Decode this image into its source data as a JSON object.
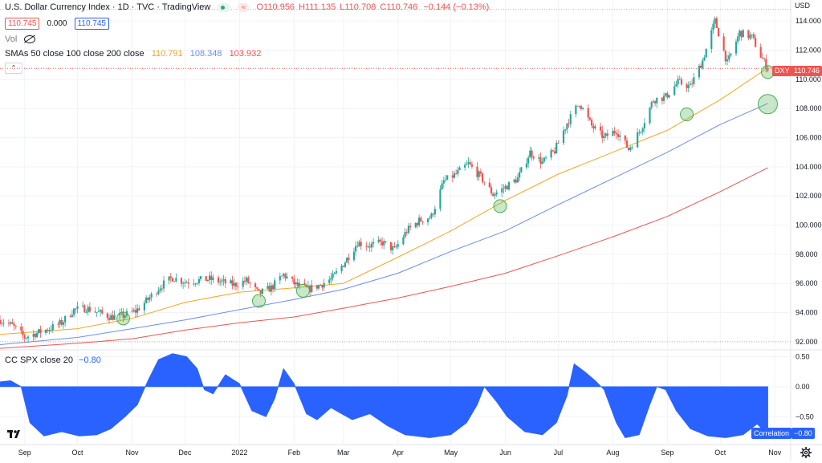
{
  "header": {
    "symbol_title": "U.S. Dollar Currency Index · 1D · TVC · TradingView",
    "ohlc": {
      "o": "O110.956",
      "h": "H111.135",
      "l": "L110.708",
      "c": "C110.746",
      "chg": "−0.144 (−0.13%)"
    },
    "price_box_left": "110.745",
    "spread": "0.000",
    "price_box_right": "110.745",
    "vol_label": "Vol",
    "sma_label": "SMAs 50 close 100 close 200 close",
    "sma50_value": "110.791",
    "sma100_value": "108.348",
    "sma200_value": "103.932"
  },
  "lower": {
    "label": "CC SPX close 20",
    "value": "−0.80",
    "badge_label": "Correlation",
    "badge_value": "−0.80"
  },
  "price_badge": {
    "symbol": "DXY",
    "value": "110.746"
  },
  "axis_unit": "USD",
  "colors": {
    "up": "#26a69a",
    "down": "#ef5350",
    "sma50": "#f5a623",
    "sma100": "#6b8ef0",
    "sma200": "#ef5350",
    "area": "#2962ff",
    "marker": "#4caf50"
  },
  "chart_data": [
    {
      "type": "candlestick",
      "title": "U.S. Dollar Currency Index · 1D · TVC · TradingView",
      "ylabel": "USD",
      "ylim": [
        91.5,
        115
      ],
      "y_ticks": [
        "114.000",
        "112.000",
        "110.000",
        "108.000",
        "106.000",
        "104.000",
        "102.000",
        "100.000",
        "98.000",
        "96.000",
        "94.000",
        "92.000"
      ],
      "x_ticks": [
        "Sep",
        "Oct",
        "Nov",
        "Dec",
        "2022",
        "Feb",
        "Mar",
        "Apr",
        "May",
        "Jun",
        "Jul",
        "Aug",
        "Sep",
        "Oct",
        "Nov"
      ],
      "x_tick_dates": [
        "2021-09-01",
        "2021-10-01",
        "2021-11-01",
        "2021-12-01",
        "2022-01-01",
        "2022-02-01",
        "2022-03-01",
        "2022-04-01",
        "2022-05-01",
        "2022-06-01",
        "2022-07-01",
        "2022-08-01",
        "2022-09-01",
        "2022-10-01",
        "2022-11-01"
      ],
      "xlim": [
        "2021-08-18",
        "2022-11-10"
      ],
      "close_path": [
        {
          "date": "2021-08-18",
          "close": 93.5
        },
        {
          "date": "2021-08-25",
          "close": 93.1
        },
        {
          "date": "2021-09-01",
          "close": 92.3
        },
        {
          "date": "2021-09-08",
          "close": 92.6
        },
        {
          "date": "2021-09-15",
          "close": 92.9
        },
        {
          "date": "2021-09-22",
          "close": 93.3
        },
        {
          "date": "2021-09-29",
          "close": 94.2
        },
        {
          "date": "2021-10-06",
          "close": 94.3
        },
        {
          "date": "2021-10-13",
          "close": 94.0
        },
        {
          "date": "2021-10-20",
          "close": 93.7
        },
        {
          "date": "2021-10-27",
          "close": 93.8
        },
        {
          "date": "2021-11-03",
          "close": 94.1
        },
        {
          "date": "2021-11-10",
          "close": 94.9
        },
        {
          "date": "2021-11-17",
          "close": 95.8
        },
        {
          "date": "2021-11-24",
          "close": 96.4
        },
        {
          "date": "2021-12-01",
          "close": 96.1
        },
        {
          "date": "2021-12-08",
          "close": 96.2
        },
        {
          "date": "2021-12-15",
          "close": 96.3
        },
        {
          "date": "2021-12-22",
          "close": 96.1
        },
        {
          "date": "2021-12-29",
          "close": 95.9
        },
        {
          "date": "2022-01-05",
          "close": 96.2
        },
        {
          "date": "2022-01-12",
          "close": 95.3
        },
        {
          "date": "2022-01-19",
          "close": 95.7
        },
        {
          "date": "2022-01-26",
          "close": 96.6
        },
        {
          "date": "2022-02-02",
          "close": 95.9
        },
        {
          "date": "2022-02-09",
          "close": 95.6
        },
        {
          "date": "2022-02-16",
          "close": 95.9
        },
        {
          "date": "2022-02-23",
          "close": 96.4
        },
        {
          "date": "2022-03-02",
          "close": 97.5
        },
        {
          "date": "2022-03-09",
          "close": 98.8
        },
        {
          "date": "2022-03-16",
          "close": 98.6
        },
        {
          "date": "2022-03-23",
          "close": 98.8
        },
        {
          "date": "2022-03-30",
          "close": 98.3
        },
        {
          "date": "2022-04-06",
          "close": 99.6
        },
        {
          "date": "2022-04-13",
          "close": 100.3
        },
        {
          "date": "2022-04-20",
          "close": 100.6
        },
        {
          "date": "2022-04-27",
          "close": 103.0
        },
        {
          "date": "2022-05-04",
          "close": 103.5
        },
        {
          "date": "2022-05-11",
          "close": 104.2
        },
        {
          "date": "2022-05-18",
          "close": 103.3
        },
        {
          "date": "2022-05-25",
          "close": 102.1
        },
        {
          "date": "2022-06-01",
          "close": 102.6
        },
        {
          "date": "2022-06-08",
          "close": 103.2
        },
        {
          "date": "2022-06-15",
          "close": 105.0
        },
        {
          "date": "2022-06-22",
          "close": 104.3
        },
        {
          "date": "2022-06-29",
          "close": 105.1
        },
        {
          "date": "2022-07-06",
          "close": 107.0
        },
        {
          "date": "2022-07-13",
          "close": 108.4
        },
        {
          "date": "2022-07-20",
          "close": 106.8
        },
        {
          "date": "2022-07-27",
          "close": 106.0
        },
        {
          "date": "2022-08-03",
          "close": 106.5
        },
        {
          "date": "2022-08-10",
          "close": 105.2
        },
        {
          "date": "2022-08-17",
          "close": 106.6
        },
        {
          "date": "2022-08-24",
          "close": 108.6
        },
        {
          "date": "2022-08-31",
          "close": 108.8
        },
        {
          "date": "2022-09-07",
          "close": 109.8
        },
        {
          "date": "2022-09-14",
          "close": 109.5
        },
        {
          "date": "2022-09-21",
          "close": 111.3
        },
        {
          "date": "2022-09-28",
          "close": 114.0
        },
        {
          "date": "2022-10-05",
          "close": 111.1
        },
        {
          "date": "2022-10-12",
          "close": 113.2
        },
        {
          "date": "2022-10-19",
          "close": 112.9
        },
        {
          "date": "2022-10-24",
          "close": 111.6
        },
        {
          "date": "2022-10-28",
          "close": 110.746
        }
      ],
      "series": [
        {
          "name": "SMA 50",
          "points": [
            {
              "date": "2021-08-18",
              "value": 92.5
            },
            {
              "date": "2021-10-01",
              "value": 92.9
            },
            {
              "date": "2021-11-01",
              "value": 93.6
            },
            {
              "date": "2021-12-01",
              "value": 94.7
            },
            {
              "date": "2022-01-01",
              "value": 95.4
            },
            {
              "date": "2022-02-01",
              "value": 95.7
            },
            {
              "date": "2022-03-01",
              "value": 96.0
            },
            {
              "date": "2022-04-01",
              "value": 97.8
            },
            {
              "date": "2022-05-01",
              "value": 99.6
            },
            {
              "date": "2022-06-01",
              "value": 101.7
            },
            {
              "date": "2022-07-01",
              "value": 103.5
            },
            {
              "date": "2022-08-01",
              "value": 105.0
            },
            {
              "date": "2022-09-01",
              "value": 106.5
            },
            {
              "date": "2022-10-01",
              "value": 108.6
            },
            {
              "date": "2022-10-28",
              "value": 110.791
            }
          ]
        },
        {
          "name": "SMA 100",
          "points": [
            {
              "date": "2021-08-18",
              "value": 91.8
            },
            {
              "date": "2021-10-01",
              "value": 92.3
            },
            {
              "date": "2021-11-01",
              "value": 92.9
            },
            {
              "date": "2021-12-01",
              "value": 93.5
            },
            {
              "date": "2022-01-01",
              "value": 94.2
            },
            {
              "date": "2022-02-01",
              "value": 94.9
            },
            {
              "date": "2022-03-01",
              "value": 95.6
            },
            {
              "date": "2022-04-01",
              "value": 96.7
            },
            {
              "date": "2022-05-01",
              "value": 98.2
            },
            {
              "date": "2022-06-01",
              "value": 99.6
            },
            {
              "date": "2022-07-01",
              "value": 101.4
            },
            {
              "date": "2022-08-01",
              "value": 103.2
            },
            {
              "date": "2022-09-01",
              "value": 105.0
            },
            {
              "date": "2022-10-01",
              "value": 106.9
            },
            {
              "date": "2022-10-28",
              "value": 108.348
            }
          ]
        },
        {
          "name": "SMA 200",
          "points": [
            {
              "date": "2021-08-18",
              "value": 91.55
            },
            {
              "date": "2021-10-01",
              "value": 91.9
            },
            {
              "date": "2021-11-01",
              "value": 92.2
            },
            {
              "date": "2021-12-01",
              "value": 92.8
            },
            {
              "date": "2022-01-01",
              "value": 93.3
            },
            {
              "date": "2022-02-01",
              "value": 93.7
            },
            {
              "date": "2022-03-01",
              "value": 94.3
            },
            {
              "date": "2022-04-01",
              "value": 95.0
            },
            {
              "date": "2022-05-01",
              "value": 95.8
            },
            {
              "date": "2022-06-01",
              "value": 96.7
            },
            {
              "date": "2022-07-01",
              "value": 97.9
            },
            {
              "date": "2022-08-01",
              "value": 99.2
            },
            {
              "date": "2022-09-01",
              "value": 100.6
            },
            {
              "date": "2022-10-01",
              "value": 102.3
            },
            {
              "date": "2022-10-28",
              "value": 103.932
            }
          ]
        }
      ],
      "markers": [
        {
          "date": "2021-10-27",
          "value": 93.6,
          "size": "small"
        },
        {
          "date": "2022-01-12",
          "value": 94.8,
          "size": "small"
        },
        {
          "date": "2022-02-06",
          "value": 95.5,
          "size": "small"
        },
        {
          "date": "2022-05-29",
          "value": 101.3,
          "size": "small"
        },
        {
          "date": "2022-09-12",
          "value": 107.6,
          "size": "small"
        },
        {
          "date": "2022-10-28",
          "value": 110.5,
          "size": "small"
        },
        {
          "date": "2022-10-28",
          "value": 108.3,
          "size": "large"
        }
      ],
      "horizontal_lines": [
        {
          "value": 114.8
        },
        {
          "value": 110.746
        },
        {
          "value": 92.0
        }
      ]
    },
    {
      "type": "area",
      "title": "CC SPX close 20",
      "ylim": [
        -0.95,
        0.6
      ],
      "y_ticks": [
        "0.50",
        "0.00",
        "−0.50"
      ],
      "xlim": [
        "2021-08-18",
        "2022-11-10"
      ],
      "points": [
        {
          "date": "2021-08-18",
          "value": 0.08
        },
        {
          "date": "2021-08-24",
          "value": 0.1
        },
        {
          "date": "2021-08-30",
          "value": 0.0
        },
        {
          "date": "2021-09-04",
          "value": -0.6
        },
        {
          "date": "2021-09-12",
          "value": -0.82
        },
        {
          "date": "2021-09-22",
          "value": -0.75
        },
        {
          "date": "2021-10-02",
          "value": -0.82
        },
        {
          "date": "2021-10-12",
          "value": -0.8
        },
        {
          "date": "2021-10-20",
          "value": -0.7
        },
        {
          "date": "2021-10-28",
          "value": -0.5
        },
        {
          "date": "2021-11-04",
          "value": -0.3
        },
        {
          "date": "2021-11-10",
          "value": 0.1
        },
        {
          "date": "2021-11-16",
          "value": 0.45
        },
        {
          "date": "2021-11-24",
          "value": 0.55
        },
        {
          "date": "2021-12-02",
          "value": 0.5
        },
        {
          "date": "2021-12-08",
          "value": 0.3
        },
        {
          "date": "2021-12-12",
          "value": -0.05
        },
        {
          "date": "2021-12-17",
          "value": -0.12
        },
        {
          "date": "2021-12-24",
          "value": 0.2
        },
        {
          "date": "2022-01-01",
          "value": 0.05
        },
        {
          "date": "2022-01-08",
          "value": -0.4
        },
        {
          "date": "2022-01-16",
          "value": -0.5
        },
        {
          "date": "2022-01-21",
          "value": -0.2
        },
        {
          "date": "2022-01-26",
          "value": 0.3
        },
        {
          "date": "2022-02-01",
          "value": 0.05
        },
        {
          "date": "2022-02-08",
          "value": -0.45
        },
        {
          "date": "2022-02-14",
          "value": -0.55
        },
        {
          "date": "2022-02-22",
          "value": -0.35
        },
        {
          "date": "2022-02-28",
          "value": -0.45
        },
        {
          "date": "2022-03-06",
          "value": -0.55
        },
        {
          "date": "2022-03-16",
          "value": -0.45
        },
        {
          "date": "2022-03-26",
          "value": -0.65
        },
        {
          "date": "2022-04-05",
          "value": -0.8
        },
        {
          "date": "2022-04-19",
          "value": -0.85
        },
        {
          "date": "2022-05-01",
          "value": -0.8
        },
        {
          "date": "2022-05-10",
          "value": -0.6
        },
        {
          "date": "2022-05-16",
          "value": -0.3
        },
        {
          "date": "2022-05-20",
          "value": 0.0
        },
        {
          "date": "2022-05-27",
          "value": -0.25
        },
        {
          "date": "2022-06-02",
          "value": -0.5
        },
        {
          "date": "2022-06-12",
          "value": -0.75
        },
        {
          "date": "2022-06-22",
          "value": -0.8
        },
        {
          "date": "2022-06-30",
          "value": -0.6
        },
        {
          "date": "2022-07-06",
          "value": -0.15
        },
        {
          "date": "2022-07-10",
          "value": 0.38
        },
        {
          "date": "2022-07-16",
          "value": 0.25
        },
        {
          "date": "2022-07-22",
          "value": 0.1
        },
        {
          "date": "2022-07-27",
          "value": -0.05
        },
        {
          "date": "2022-08-03",
          "value": -0.6
        },
        {
          "date": "2022-08-08",
          "value": -0.85
        },
        {
          "date": "2022-08-16",
          "value": -0.8
        },
        {
          "date": "2022-08-22",
          "value": -0.3
        },
        {
          "date": "2022-08-26",
          "value": 0.0
        },
        {
          "date": "2022-08-31",
          "value": -0.05
        },
        {
          "date": "2022-09-06",
          "value": -0.4
        },
        {
          "date": "2022-09-14",
          "value": -0.7
        },
        {
          "date": "2022-09-24",
          "value": -0.82
        },
        {
          "date": "2022-10-04",
          "value": -0.85
        },
        {
          "date": "2022-10-14",
          "value": -0.8
        },
        {
          "date": "2022-10-22",
          "value": -0.62
        },
        {
          "date": "2022-10-28",
          "value": -0.8
        }
      ]
    }
  ]
}
